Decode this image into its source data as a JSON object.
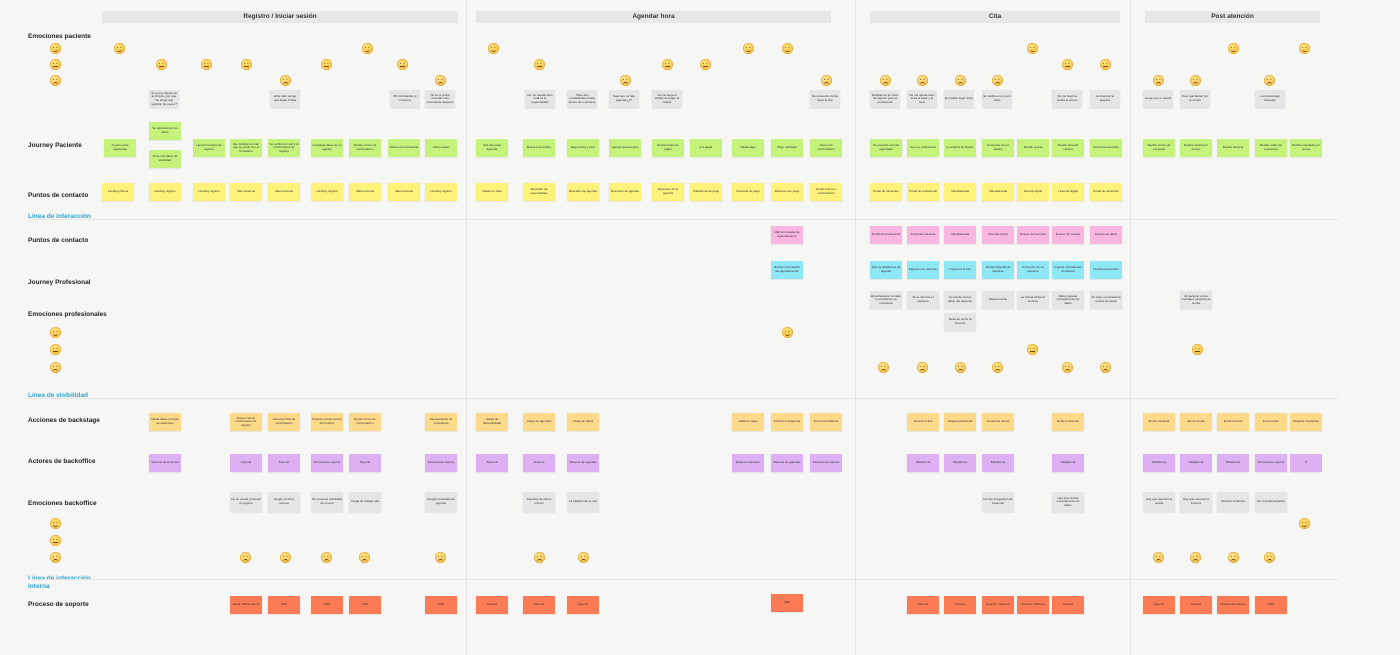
{
  "phases": [
    {
      "id": "registro",
      "label": "Registro / Iniciar sesión"
    },
    {
      "id": "agendar",
      "label": "Agendar hora"
    },
    {
      "id": "cita",
      "label": "Cita"
    },
    {
      "id": "post",
      "label": "Post atención"
    }
  ],
  "rows": [
    {
      "id": "emociones_paciente",
      "label": "Emociones paciente"
    },
    {
      "id": "journey_paciente",
      "label": "Journey Paciente"
    },
    {
      "id": "puntos_contacto_1",
      "label": "Puntos de contacto"
    },
    {
      "id": "puntos_contacto_2",
      "label": "Puntos de contacto"
    },
    {
      "id": "journey_profesional",
      "label": "Journey Profesional"
    },
    {
      "id": "emociones_profesionales",
      "label": "Emociones profesionales"
    },
    {
      "id": "acciones_backstage",
      "label": "Acciones de backstage"
    },
    {
      "id": "actores_backoffice",
      "label": "Actores de backoffice"
    },
    {
      "id": "emociones_backoffice",
      "label": "Emociones backoffice"
    },
    {
      "id": "proceso_soporte",
      "label": "Proceso de soporte"
    }
  ],
  "dividers": [
    {
      "id": "interaccion",
      "label": "Línea de interacción"
    },
    {
      "id": "visibilidad",
      "label": "Línea de visibilidad"
    },
    {
      "id": "interaccion_interna",
      "label": "Línea de interacción interna"
    }
  ],
  "notes": {
    "paciente_comments": [
      "Si ya soy cliente de la clínica ¿por qué me tengo que registrar de nuevo?",
      "Error web ¡tengo que llegar 3 días",
      "Mi contraseña no funciona",
      "No sé si podré recordar esta contraseña después",
      "No me queda claro cuál es la especialidad",
      "Tiene dos posibilidades hasta dentro de 1 semana",
      "Sale que no hay agenda ¿y?",
      "No me llega el código del pago al celular",
      "No encuentro cómo dejar la cita",
      "Estábamos en hora de ingreso para el profesional",
      "No me queda claro si es el lugar y la hora",
      "El médico llegó tarde",
      "El médico muy poco claro",
      "No me llegó la receta al correo",
      "La licencia no aparece",
      "Luego voy a marcar",
      "Tuve que llamar por la receta",
      "La receta llegó después"
    ],
    "journey_paciente": [
      "Ingreso para registrarse",
      "Se equivocó en los datos",
      "Pone sus datos de identidad",
      "Llena formulario de registro",
      "Me notifican el mail que se envió con el formulario",
      "Se verifica el mail y la confirmación de registro",
      "Completa datos de su registro",
      "Recibe correo de confirmación",
      "Define su contraseña",
      "Inicia sesión",
      "Usa sitio para agendar",
      "Busca a su doctor",
      "Elige fecha y hora",
      "Agrega documentos",
      "Revisa antes de pagar",
      "Ir a pagar",
      "Valida pago",
      "Pago realizado",
      "Correo de confirmación",
      "Se conecta a la cita agendada",
      "Ve a su profesional",
      "Le explica al médico",
      "Conversa con el médico",
      "Recibe receta",
      "Recibe licencia médica",
      "Termina la atención",
      "Recibe correo de encuesta",
      "Recibe receta por correo",
      "Recibe licencia",
      "Recibe orden de exámenes",
      "Recibe resultado por correo"
    ],
    "puntos_contacto_1": [
      "Landing clínica",
      "Landing registro",
      "Landing registro",
      "Sitio personal",
      "Mail personal",
      "Landing registro",
      "Mail personal",
      "Mail personal",
      "Landing registro",
      "Teléfono / Sitio",
      "Buscador de especialistas",
      "Buscador de agenda",
      "Buscador de agenda",
      "Resumen de la agenda",
      "Plataforma de pago",
      "Pasarela de pago",
      "Resumen de pago",
      "Email mail con confirmación",
      "Portal de pacientes",
      "Portal de profesional",
      "Videollamada",
      "Videollamada",
      "Receta digital",
      "Licencia digital",
      "Portal de pacientes"
    ],
    "puntos_contacto_2": [
      "Mail con detalle de agendamiento",
      "Portal del profesional",
      "Portal del paciente",
      "Videollamada",
      "Historial clínico",
      "Emisor de licencias",
      "Emisor de recetas",
      "Ingreso de datos"
    ],
    "journey_profesional": [
      "Recibe información del agendamiento",
      "Abre la plataforma de agenda",
      "Espera a su paciente",
      "Ingresa a la cita",
      "Revisa historial de paciente",
      "Conversa con el paciente",
      "Ingresa indicaciones al sistema",
      "Finaliza la atención"
    ],
    "profesional_comments": [
      "El profesional no sabe si el paciente se conectará",
      "Se le demora el paciente",
      "No puede ver los datos del paciente",
      "Sistema lento",
      "La receta tarda en emitirse",
      "Debe ingresar manualmente los datos",
      "No sabe si el paciente recibió la receta",
      "Tarda en emitir la licencia",
      "El paciente envía mensajes después de la cita"
    ],
    "acciones_backstage": [
      "Valida datos en base de pacientes",
      "Envía mail de confirmación de registro",
      "Genera el link de confirmación",
      "Soporte revisa errores del registro",
      "Envía correo de confirmación",
      "Recuperación de contraseña",
      "Carga de disponibilidad",
      "Carga de agendas",
      "Carga de datos",
      "Valida el pago",
      "Informa a la agenda",
      "Envía recordatorio",
      "Genera el link",
      "Asigna profesional",
      "Genera la receta",
      "Emite la licencia",
      "Envía encuesta",
      "Envía receta",
      "Envía licencia",
      "Envía orden",
      "Registra resultados"
    ],
    "actores_backoffice": [
      "Sistema de la clínica",
      "Soporte",
      "Soporte",
      "Personal de soporte",
      "Soporte",
      "Personal de soporte",
      "Sistema",
      "Sistema",
      "Sistema de agendas",
      "Sistema financiero",
      "Sistema de agendas",
      "Personal de soporte",
      "Plataforma",
      "Plataforma",
      "Plataforma",
      "Plataforma",
      "Plataforma",
      "Plataforma",
      "Plataforma",
      "Personal de soporte",
      "TI"
    ],
    "backoffice_comments": [
      "No se puede procesar el registro",
      "Llegan muchos correos",
      "No tenemos visibilidad de errores",
      "Carga de trabajo alta",
      "Cargas manuales de agenda",
      "Cambios de último minuto",
      "La plataforma se cae",
      "No hay integración de sistemas",
      "Hay que revisar manualmente los datos",
      "Hay que reenviar la receta",
      "Hay que reenviar la licencia",
      "Muchos reclamos",
      "Sin retroalimentación"
    ],
    "proceso_soporte": [
      "Email / Base interna",
      "Mail",
      "Mail",
      "Mail",
      "Mail",
      "Soporte",
      "Soporte",
      "Soporte",
      "Mail",
      "Soporte",
      "Soporte",
      "Soporte / Sistema",
      "Soporte / Sistema",
      "Soporte",
      "Soporte",
      "Soporte",
      "Sistema de soporte",
      "Mail"
    ]
  },
  "colors": {
    "journey": "#c4f27a",
    "contact": "#fdf37a",
    "contact_pro": "#f8b6e0",
    "journey_pro": "#8fe6f5",
    "comment": "#e5e5e5",
    "backstage": "#fdd98a",
    "actor": "#dcb0f3",
    "support": "#fb7b54",
    "divider_label": "#2aa4cf"
  },
  "icons": {
    "happy": "smiling-face-icon",
    "neutral": "neutral-face-icon",
    "sad": "worried-face-icon"
  }
}
